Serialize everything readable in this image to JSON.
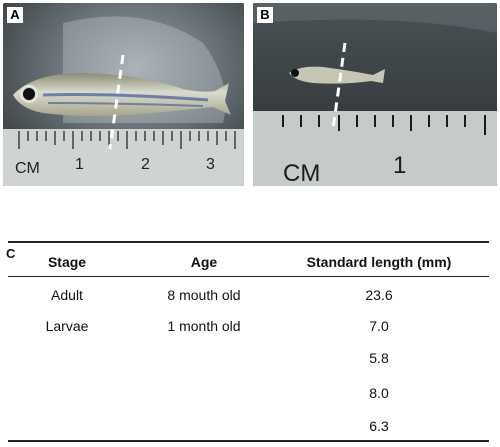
{
  "panels": {
    "a": {
      "label": "A",
      "ruler_unit": "CM",
      "ruler_numbers": [
        "1",
        "2",
        "3"
      ]
    },
    "b": {
      "label": "B",
      "ruler_unit": "CM",
      "ruler_numbers": [
        "1"
      ]
    }
  },
  "table": {
    "label": "C",
    "headers": [
      "Stage",
      "Age",
      "Standard length (mm)"
    ],
    "rows": [
      [
        "Adult",
        "8 mouth old",
        "23.6"
      ],
      [
        "Larvae",
        "1 month old",
        "7.0"
      ],
      [
        "",
        "",
        "5.8"
      ],
      [
        "",
        "",
        "8.0"
      ],
      [
        "",
        "",
        "6.3"
      ]
    ]
  }
}
